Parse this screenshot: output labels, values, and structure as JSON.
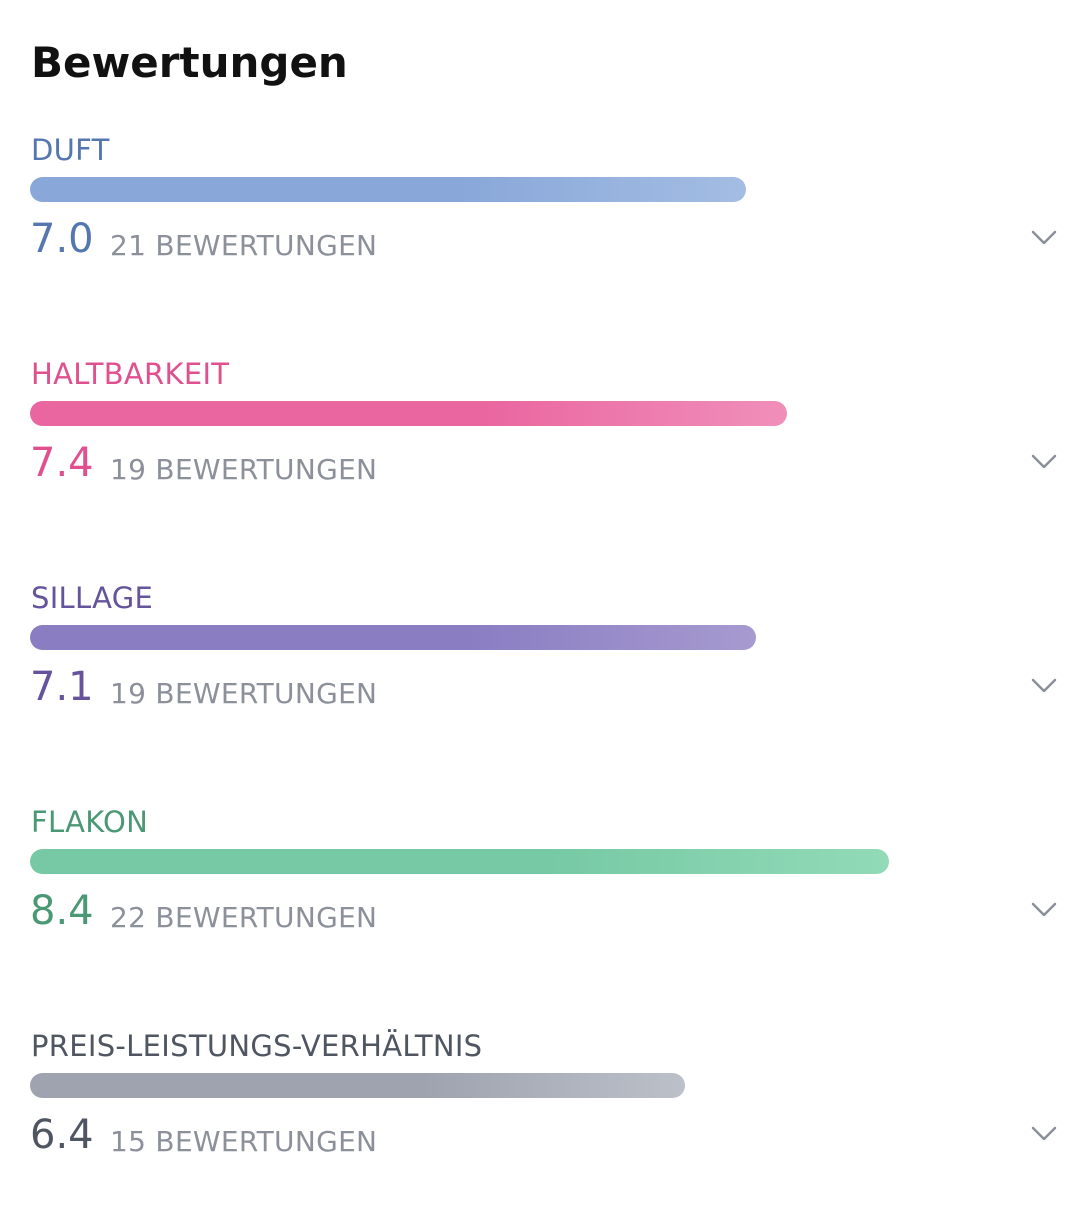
{
  "title": "Bewertungen",
  "xlim": [
    0,
    10
  ],
  "items": [
    {
      "label": "DUFT",
      "score": 7,
      "score_label": "7.0",
      "count_label": "21 BEWERTUNGEN",
      "color": "#5577b0",
      "bar_colors": [
        "#89a7d9",
        "#a3bde3"
      ]
    },
    {
      "label": "HALTBARKEIT",
      "score": 7.4,
      "score_label": "7.4",
      "count_label": "19 BEWERTUNGEN",
      "color": "#e0508e",
      "bar_colors": [
        "#ea66a0",
        "#f08fba"
      ]
    },
    {
      "label": "SILLAGE",
      "score": 7.1,
      "score_label": "7.1",
      "count_label": "19 BEWERTUNGEN",
      "color": "#65549c",
      "bar_colors": [
        "#8a7dc2",
        "#a69ad0"
      ]
    },
    {
      "label": "FLAKON",
      "score": 8.4,
      "score_label": "8.4",
      "count_label": "22 BEWERTUNGEN",
      "color": "#4b9874",
      "bar_colors": [
        "#76c9a4",
        "#92dab8"
      ]
    },
    {
      "label": "PREIS-LEISTUNGS-VERHÄLTNIS",
      "score": 6.4,
      "score_label": "6.4",
      "count_label": "15 BEWERTUNGEN",
      "color": "#4f5662",
      "bar_colors": [
        "#9fa3af",
        "#bcc0c9"
      ]
    }
  ]
}
